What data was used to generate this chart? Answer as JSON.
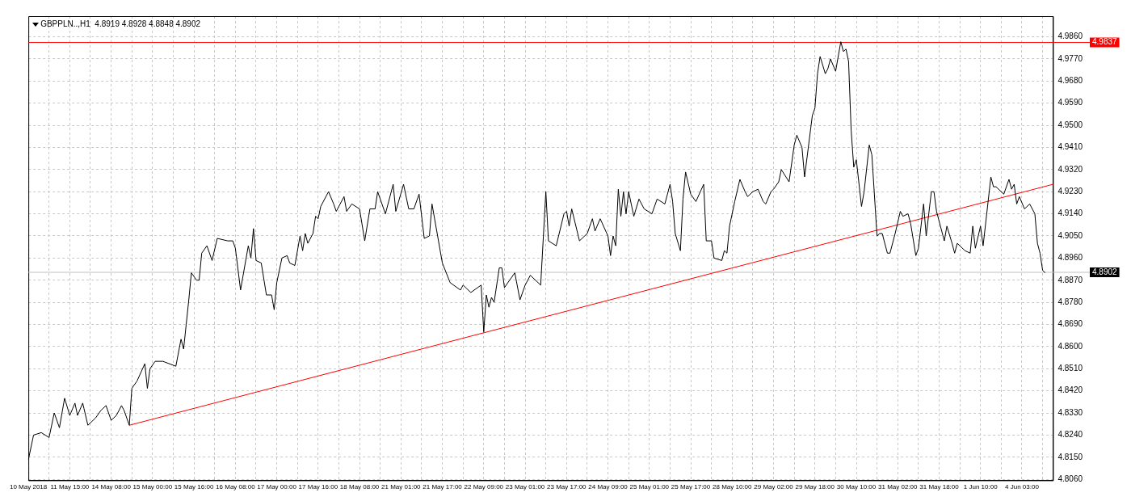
{
  "chart_data": {
    "type": "line",
    "title": "GBPPLN..,H1  4.8919 4.8928 4.8848 4.8902",
    "grid": true,
    "legend": false,
    "line_style": "solid",
    "marker": "none",
    "categories": [
      "10 May 2018",
      null,
      null,
      null,
      null,
      null,
      null,
      null,
      null,
      null,
      null,
      null,
      null,
      null,
      null,
      null,
      "11 May 15:00",
      null,
      null,
      null,
      null,
      null,
      null,
      null,
      null,
      null,
      null,
      null,
      null,
      null,
      null,
      null,
      "14 May 08:00",
      null,
      null,
      null,
      null,
      null,
      null,
      null,
      null,
      null,
      null,
      null,
      null,
      null,
      null,
      null,
      "15 May 00:00",
      null,
      null,
      null,
      null,
      null,
      null,
      null,
      null,
      null,
      null,
      null,
      null,
      null,
      null,
      null,
      "15 May 16:00",
      null,
      null,
      null,
      null,
      null,
      null,
      null,
      null,
      null,
      null,
      null,
      null,
      null,
      null,
      null,
      "16 May 08:00",
      null,
      null,
      null,
      null,
      null,
      null,
      null,
      null,
      null,
      null,
      null,
      null,
      null,
      null,
      null,
      "17 May 00:00",
      null,
      null,
      null,
      null,
      null,
      null,
      null,
      null,
      null,
      null,
      null,
      null,
      null,
      null,
      null,
      "17 May 16:00",
      null,
      null,
      null,
      null,
      null,
      null,
      null,
      null,
      null,
      null,
      null,
      null,
      null,
      null,
      null,
      "18 May 08:00",
      null,
      null,
      null,
      null,
      null,
      null,
      null,
      null,
      null,
      null,
      null,
      null,
      null,
      null,
      null,
      "21 May 01:00",
      null,
      null,
      null,
      null,
      null,
      null,
      null,
      null,
      null,
      null,
      null,
      null,
      null,
      null,
      null,
      "21 May 17:00",
      null,
      null,
      null,
      null,
      null,
      null,
      null,
      null,
      null,
      null,
      null,
      null,
      null,
      null,
      null,
      "22 May 09:00",
      null,
      null,
      null,
      null,
      null,
      null,
      null,
      null,
      null,
      null,
      null,
      null,
      null,
      null,
      null,
      "23 May 01:00",
      null,
      null,
      null,
      null,
      null,
      null,
      null,
      null,
      null,
      null,
      null,
      null,
      null,
      null,
      null,
      "23 May 17:00",
      null,
      null,
      null,
      null,
      null,
      null,
      null,
      null,
      null,
      null,
      null,
      null,
      null,
      null,
      null,
      "24 May 09:00",
      null,
      null,
      null,
      null,
      null,
      null,
      null,
      null,
      null,
      null,
      null,
      null,
      null,
      null,
      null,
      "25 May 01:00",
      null,
      null,
      null,
      null,
      null,
      null,
      null,
      null,
      null,
      null,
      null,
      null,
      null,
      null,
      null,
      "25 May 17:00",
      null,
      null,
      null,
      null,
      null,
      null,
      null,
      null,
      null,
      null,
      null,
      null,
      null,
      null,
      null,
      "28 May 10:00",
      null,
      null,
      null,
      null,
      null,
      null,
      null,
      null,
      null,
      null,
      null,
      null,
      null,
      null,
      null,
      "29 May 02:00",
      null,
      null,
      null,
      null,
      null,
      null,
      null,
      null,
      null,
      null,
      null,
      null,
      null,
      null,
      null,
      "29 May 18:00",
      null,
      null,
      null,
      null,
      null,
      null,
      null,
      null,
      null,
      null,
      null,
      null,
      null,
      null,
      null,
      "30 May 10:00",
      null,
      null,
      null,
      null,
      null,
      null,
      null,
      null,
      null,
      null,
      null,
      null,
      null,
      null,
      null,
      "31 May 02:00",
      null,
      null,
      null,
      null,
      null,
      null,
      null,
      null,
      null,
      null,
      null,
      null,
      null,
      null,
      null,
      "31 May 18:00",
      null,
      null,
      null,
      null,
      null,
      null,
      null,
      null,
      null,
      null,
      null,
      null,
      null,
      null,
      null,
      "1 Jun 10:00",
      null,
      null,
      null,
      null,
      null,
      null,
      null,
      null,
      null,
      null,
      null,
      null,
      null,
      null,
      null,
      "4 Jun 03:00",
      null,
      null,
      null,
      null,
      null,
      null,
      null,
      null,
      null,
      null,
      null,
      null
    ],
    "ylim": [
      4.8056,
      4.9944
    ],
    "yticks": [
      {
        "value": 4.806,
        "label": "4.8060"
      },
      {
        "value": 4.815,
        "label": "4.8150"
      },
      {
        "value": 4.824,
        "label": "4.8240"
      },
      {
        "value": 4.833,
        "label": "4.8330"
      },
      {
        "value": 4.842,
        "label": "4.8420"
      },
      {
        "value": 4.851,
        "label": "4.8510"
      },
      {
        "value": 4.86,
        "label": "4.8600"
      },
      {
        "value": 4.869,
        "label": "4.8690"
      },
      {
        "value": 4.878,
        "label": "4.8780"
      },
      {
        "value": 4.887,
        "label": "4.8870"
      },
      {
        "value": 4.896,
        "label": "4.8960"
      },
      {
        "value": 4.905,
        "label": "4.9050"
      },
      {
        "value": 4.914,
        "label": "4.9140"
      },
      {
        "value": 4.923,
        "label": "4.9230"
      },
      {
        "value": 4.932,
        "label": "4.9320"
      },
      {
        "value": 4.941,
        "label": "4.9410"
      },
      {
        "value": 4.95,
        "label": "4.9500"
      },
      {
        "value": 4.959,
        "label": "4.9590"
      },
      {
        "value": 4.968,
        "label": "4.9680"
      },
      {
        "value": 4.977,
        "label": "4.9770"
      },
      {
        "value": 4.986,
        "label": "4.9860"
      }
    ],
    "ref_lines": [
      {
        "axis": "y",
        "value": 4.9837,
        "label": "4.9837",
        "color": "#ff0000"
      },
      {
        "axis": "y",
        "value": 4.8902,
        "label": "4.8902",
        "color": "#c0c0c0"
      }
    ],
    "series": [
      {
        "color": "#000000",
        "values": [
          4.814,
          null,
          4.824,
          null,
          null,
          4.825,
          null,
          null,
          4.823,
          null,
          4.833,
          null,
          4.827,
          null,
          4.839,
          null,
          4.832,
          null,
          4.837,
          4.832,
          null,
          4.837,
          null,
          4.828,
          null,
          null,
          4.831,
          null,
          4.834,
          null,
          4.836,
          null,
          4.83,
          null,
          4.832,
          null,
          4.836,
          4.834,
          null,
          4.828,
          4.843,
          null,
          4.846,
          null,
          null,
          4.853,
          4.843,
          4.851,
          null,
          4.854,
          null,
          null,
          4.854,
          null,
          null,
          null,
          null,
          4.852,
          null,
          4.863,
          4.859,
          4.869,
          4.879,
          4.89,
          null,
          4.887,
          4.887,
          4.898,
          null,
          4.901,
          null,
          4.895,
          null,
          4.904,
          null,
          null,
          null,
          4.903,
          null,
          4.903,
          4.9,
          null,
          4.883,
          null,
          null,
          4.901,
          4.896,
          4.908,
          4.895,
          null,
          4.894,
          null,
          4.881,
          null,
          4.881,
          4.875,
          4.886,
          null,
          4.896,
          null,
          4.897,
          4.894,
          null,
          4.893,
          null,
          4.905,
          4.899,
          4.906,
          4.902,
          null,
          4.906,
          4.913,
          4.912,
          4.917,
          null,
          null,
          4.923,
          null,
          4.918,
          4.915,
          null,
          null,
          4.921,
          4.915,
          null,
          4.918,
          null,
          null,
          4.916,
          null,
          4.903,
          null,
          4.916,
          null,
          4.916,
          4.923,
          null,
          null,
          4.914,
          null,
          null,
          4.926,
          4.915,
          null,
          null,
          4.926,
          null,
          4.916,
          null,
          4.916,
          null,
          4.922,
          null,
          4.904,
          null,
          4.905,
          4.918,
          null,
          4.906,
          null,
          4.894,
          null,
          null,
          4.886,
          null,
          null,
          null,
          4.883,
          4.885,
          null,
          null,
          4.882,
          null,
          null,
          null,
          4.885,
          4.866,
          4.881,
          4.876,
          4.88,
          4.878,
          null,
          4.892,
          4.892,
          4.884,
          null,
          null,
          null,
          4.89,
          null,
          4.879,
          null,
          4.885,
          null,
          4.889,
          null,
          null,
          null,
          4.885,
          null,
          4.923,
          4.903,
          null,
          null,
          4.901,
          null,
          null,
          4.914,
          4.915,
          4.909,
          4.916,
          null,
          null,
          4.903,
          null,
          null,
          4.906,
          null,
          4.912,
          4.907,
          null,
          4.912,
          null,
          null,
          4.905,
          4.897,
          4.905,
          4.901,
          4.924,
          4.913,
          4.923,
          4.914,
          4.923,
          null,
          4.913,
          null,
          4.92,
          null,
          4.916,
          null,
          null,
          4.914,
          null,
          4.92,
          null,
          null,
          4.918,
          null,
          4.926,
          4.919,
          4.906,
          null,
          4.899,
          4.92,
          4.931,
          null,
          4.922,
          null,
          4.919,
          null,
          null,
          4.926,
          4.903,
          null,
          4.903,
          4.896,
          null,
          null,
          4.895,
          4.899,
          4.898,
          4.909,
          null,
          4.919,
          null,
          4.928,
          null,
          4.923,
          4.921,
          null,
          4.923,
          null,
          4.924,
          null,
          4.919,
          4.918,
          null,
          4.923,
          4.924,
          null,
          4.927,
          4.932,
          null,
          null,
          4.927,
          null,
          4.942,
          4.946,
          null,
          4.941,
          4.929,
          null,
          null,
          4.954,
          4.957,
          4.971,
          4.978,
          null,
          4.971,
          4.973,
          4.977,
          null,
          4.972,
          null,
          4.984,
          4.98,
          4.981,
          4.976,
          4.948,
          4.933,
          4.936,
          null,
          4.917,
          4.923,
          null,
          4.942,
          4.938,
          null,
          4.905,
          4.906,
          4.906,
          null,
          4.898,
          4.898,
          null,
          4.906,
          null,
          4.915,
          4.913,
          null,
          4.914,
          4.91,
          null,
          4.897,
          4.9,
          null,
          4.918,
          4.905,
          null,
          4.923,
          4.923,
          4.915,
          null,
          null,
          4.903,
          4.909,
          null,
          4.902,
          4.898,
          4.902,
          null,
          null,
          4.899,
          null,
          4.898,
          4.909,
          4.9,
          null,
          4.909,
          4.901,
          null,
          null,
          4.929,
          4.925,
          4.925,
          null,
          null,
          4.922,
          null,
          4.928,
          4.924,
          4.926,
          4.918,
          4.921,
          null,
          4.916,
          null,
          4.918,
          null,
          4.914,
          4.902,
          4.898,
          4.891,
          4.89,
          null,
          null,
          null
        ]
      },
      {
        "type": "line",
        "color": "#ff0000",
        "values": [
          null,
          null,
          null,
          null,
          null,
          null,
          null,
          null,
          null,
          null,
          null,
          null,
          null,
          null,
          null,
          null,
          null,
          null,
          null,
          null,
          null,
          null,
          null,
          null,
          null,
          null,
          null,
          null,
          null,
          null,
          null,
          null,
          null,
          null,
          null,
          null,
          null,
          null,
          null,
          4.828,
          null,
          null,
          null,
          null,
          null,
          null,
          null,
          null,
          null,
          null,
          null,
          null,
          null,
          null,
          null,
          null,
          null,
          null,
          null,
          null,
          null,
          null,
          null,
          null,
          null,
          null,
          null,
          null,
          null,
          null,
          null,
          null,
          null,
          null,
          null,
          null,
          null,
          null,
          null,
          null,
          null,
          null,
          null,
          null,
          null,
          null,
          null,
          null,
          null,
          null,
          null,
          null,
          null,
          null,
          null,
          null,
          null,
          null,
          null,
          null,
          null,
          null,
          null,
          null,
          null,
          null,
          null,
          null,
          null,
          null,
          null,
          null,
          null,
          null,
          null,
          null,
          null,
          null,
          null,
          null,
          null,
          null,
          null,
          null,
          null,
          null,
          null,
          null,
          null,
          null,
          null,
          null,
          null,
          null,
          null,
          null,
          null,
          null,
          null,
          null,
          null,
          null,
          null,
          null,
          null,
          null,
          null,
          null,
          null,
          null,
          null,
          null,
          null,
          null,
          null,
          null,
          null,
          null,
          null,
          null,
          null,
          null,
          null,
          null,
          null,
          null,
          null,
          null,
          null,
          null,
          null,
          null,
          null,
          null,
          null,
          null,
          null,
          null,
          null,
          null,
          null,
          null,
          null,
          null,
          null,
          null,
          null,
          null,
          null,
          null,
          null,
          null,
          null,
          null,
          null,
          null,
          null,
          null,
          null,
          null,
          null,
          null,
          null,
          null,
          null,
          null,
          null,
          null,
          null,
          null,
          null,
          null,
          null,
          null,
          null,
          null,
          null,
          null,
          null,
          null,
          null,
          null,
          null,
          null,
          null,
          null,
          null,
          null,
          null,
          null,
          null,
          null,
          null,
          null,
          null,
          null,
          null,
          null,
          null,
          null,
          null,
          null,
          null,
          null,
          null,
          null,
          null,
          null,
          null,
          null,
          null,
          null,
          null,
          null,
          null,
          null,
          null,
          null,
          null,
          null,
          null,
          null,
          null,
          null,
          null,
          null,
          null,
          null,
          null,
          null,
          null,
          null,
          null,
          null,
          null,
          null,
          null,
          null,
          null,
          null,
          null,
          null,
          null,
          null,
          null,
          null,
          null,
          null,
          null,
          null,
          null,
          null,
          null,
          null,
          null,
          null,
          null,
          null,
          null,
          null,
          null,
          null,
          null,
          null,
          null,
          null,
          null,
          null,
          null,
          null,
          null,
          null,
          null,
          null,
          null,
          null,
          null,
          null,
          null,
          null,
          null,
          null,
          null,
          null,
          null,
          null,
          null,
          null,
          null,
          null,
          null,
          null,
          null,
          null,
          null,
          null,
          null,
          null,
          null,
          null,
          null,
          null,
          null,
          null,
          null,
          null,
          null,
          null,
          null,
          null,
          null,
          null,
          null,
          null,
          null,
          null,
          null,
          null,
          null,
          null,
          null,
          null,
          null,
          null,
          null,
          null,
          null,
          null,
          null,
          null,
          null,
          null,
          null,
          null,
          null,
          null,
          null,
          null,
          null,
          null,
          null,
          null,
          null,
          null,
          null,
          null,
          null,
          null,
          null,
          null,
          null,
          null,
          null,
          null,
          null,
          null,
          4.926
        ]
      }
    ]
  }
}
